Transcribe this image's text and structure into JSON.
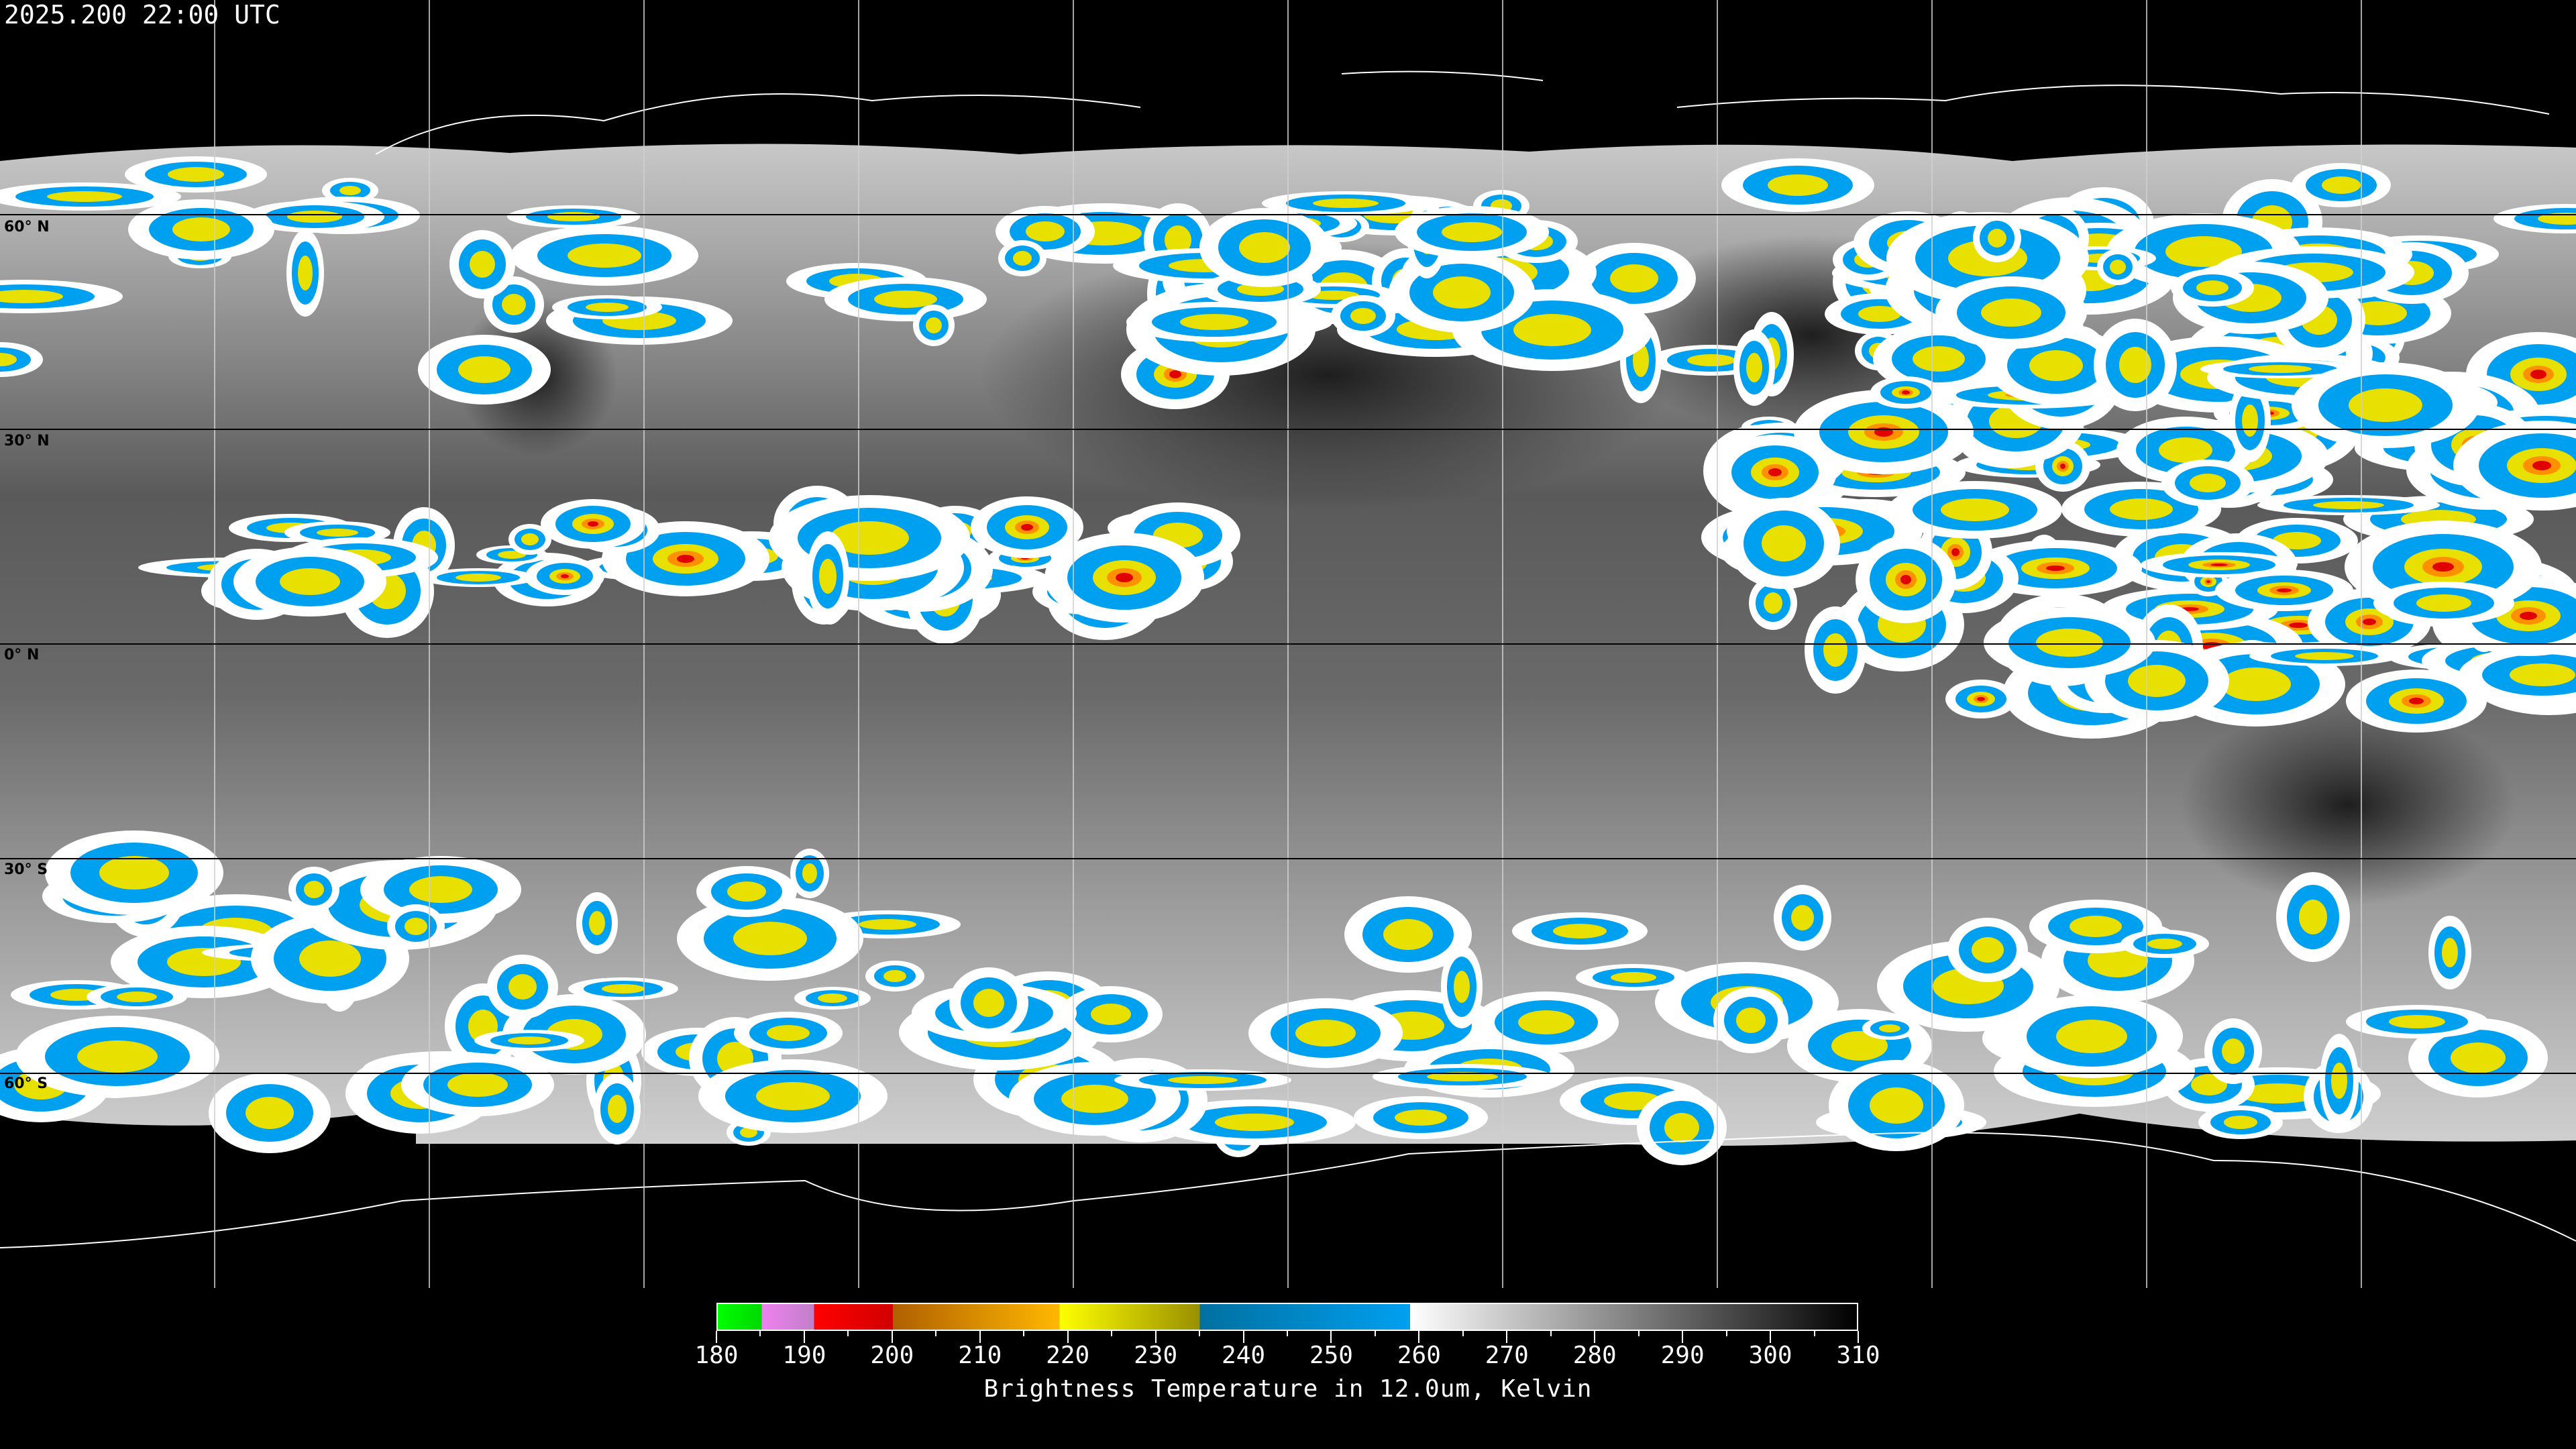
{
  "timestamp": "2025.200 22:00 UTC",
  "map": {
    "projection": "equirectangular",
    "lon_range": [
      -180,
      180
    ],
    "lat_range": [
      -90,
      90
    ],
    "gridline_spacing_lon": 30,
    "gridline_spacing_lat": 30,
    "lat_labels": [
      "60° N",
      "30° N",
      "0° N",
      "30° S",
      "60° S"
    ]
  },
  "colorbar": {
    "title": "Brightness Temperature in 12.0um, Kelvin",
    "range": [
      180,
      310
    ],
    "tick_labels": [
      "180",
      "190",
      "200",
      "210",
      "220",
      "230",
      "240",
      "250",
      "260",
      "270",
      "280",
      "290",
      "300",
      "310"
    ],
    "segments": [
      {
        "from": 180,
        "to": 185,
        "start_color": "#00ff00",
        "end_color": "#00d800"
      },
      {
        "from": 185,
        "to": 191,
        "start_color": "#f080f0",
        "end_color": "#c080c8"
      },
      {
        "from": 191,
        "to": 200,
        "start_color": "#ff0000",
        "end_color": "#d00000"
      },
      {
        "from": 200,
        "to": 219,
        "start_color": "#b06000",
        "end_color": "#ffb800"
      },
      {
        "from": 219,
        "to": 235,
        "start_color": "#ffff00",
        "end_color": "#999000"
      },
      {
        "from": 235,
        "to": 259,
        "start_color": "#0070a0",
        "end_color": "#00a0f0"
      },
      {
        "from": 259,
        "to": 310,
        "start_color": "#ffffff",
        "end_color": "#000000"
      }
    ]
  }
}
